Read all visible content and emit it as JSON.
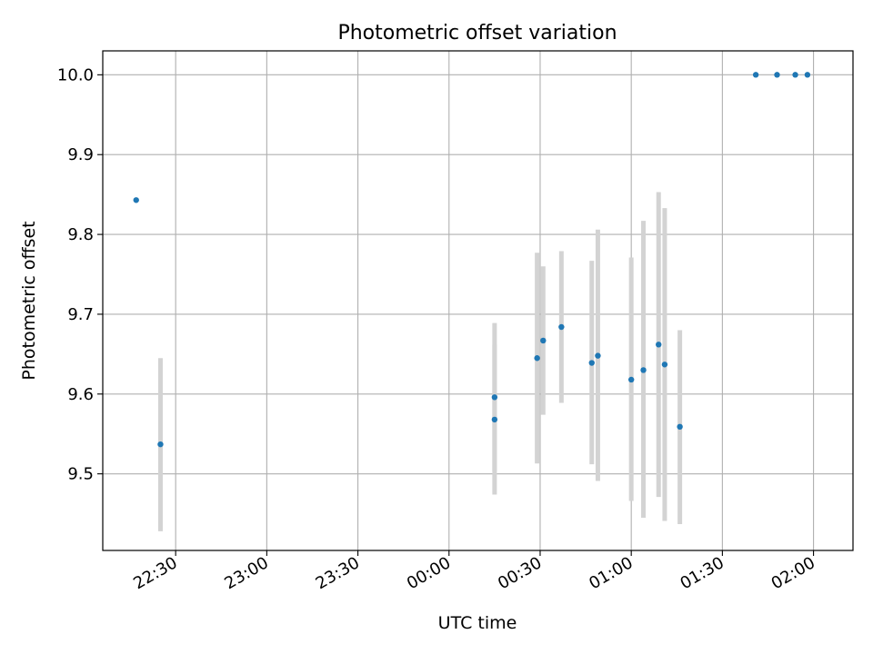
{
  "chart_data": {
    "type": "scatter",
    "title": "Photometric offset variation",
    "xlabel": "UTC time",
    "ylabel": "Photometric offset",
    "x_axis_kind": "time",
    "x_ticks": [
      "22:30",
      "23:00",
      "23:30",
      "00:00",
      "00:30",
      "01:00",
      "01:30",
      "02:00"
    ],
    "y_ticks": [
      "9.5",
      "9.6",
      "9.7",
      "9.8",
      "9.9",
      "10.0"
    ],
    "xlim": [
      "22:06",
      "02:13"
    ],
    "ylim": [
      9.404,
      10.03
    ],
    "grid": true,
    "colors": {
      "point": "#1f77b4",
      "error_bar": "#d3d3d3",
      "grid": "#b0b0b0"
    },
    "points": [
      {
        "x": "22:17",
        "y": 9.843
      },
      {
        "x": "22:25",
        "y": 9.537,
        "err_low": 9.428,
        "err_high": 9.645
      },
      {
        "x": "00:15",
        "y": 9.568,
        "err_low": 9.474,
        "err_high": 9.662
      },
      {
        "x": "00:15",
        "y": 9.596,
        "err_low": 9.503,
        "err_high": 9.689
      },
      {
        "x": "00:29",
        "y": 9.645,
        "err_low": 9.513,
        "err_high": 9.777
      },
      {
        "x": "00:31",
        "y": 9.667,
        "err_low": 9.574,
        "err_high": 9.76
      },
      {
        "x": "00:37",
        "y": 9.684,
        "err_low": 9.589,
        "err_high": 9.779
      },
      {
        "x": "00:47",
        "y": 9.639,
        "err_low": 9.512,
        "err_high": 9.767
      },
      {
        "x": "00:49",
        "y": 9.648,
        "err_low": 9.491,
        "err_high": 9.806
      },
      {
        "x": "01:00",
        "y": 9.618,
        "err_low": 9.466,
        "err_high": 9.771
      },
      {
        "x": "01:04",
        "y": 9.63,
        "err_low": 9.445,
        "err_high": 9.817
      },
      {
        "x": "01:09",
        "y": 9.662,
        "err_low": 9.471,
        "err_high": 9.853
      },
      {
        "x": "01:11",
        "y": 9.637,
        "err_low": 9.441,
        "err_high": 9.833
      },
      {
        "x": "01:16",
        "y": 9.559,
        "err_low": 9.437,
        "err_high": 9.68
      },
      {
        "x": "01:41",
        "y": 10.0
      },
      {
        "x": "01:48",
        "y": 10.0
      },
      {
        "x": "01:54",
        "y": 10.0
      },
      {
        "x": "01:58",
        "y": 10.0
      }
    ]
  }
}
